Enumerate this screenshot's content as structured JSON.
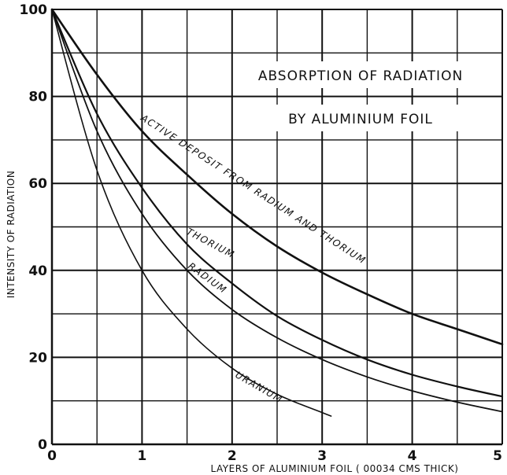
{
  "chart_data": {
    "type": "line",
    "title": "ABSORPTION OF RADIATION",
    "subtitle": "BY ALUMINIUM FOIL",
    "xlabel": "LAYERS OF ALUMINIUM FOIL ( 00034 CMS THICK)",
    "ylabel": "INTENSITY OF RADIATION",
    "xlim": [
      0,
      5
    ],
    "ylim": [
      0,
      100
    ],
    "x_ticks": [
      "0",
      "1",
      "2",
      "3",
      "4",
      "5"
    ],
    "y_ticks": [
      "0",
      "20",
      "40",
      "60",
      "80",
      "100"
    ],
    "grid": true,
    "series": [
      {
        "name": "ACTIVE DEPOSIT FROM RADIUM AND THORIUM",
        "x": [
          0,
          0.5,
          1,
          1.5,
          2,
          2.5,
          3,
          3.5,
          4,
          4.5,
          5
        ],
        "y": [
          100,
          85,
          72,
          62,
          53,
          45.5,
          39.5,
          34.5,
          30,
          26.5,
          23
        ]
      },
      {
        "name": "THORIUM",
        "x": [
          0,
          0.5,
          1,
          1.5,
          2,
          2.5,
          3,
          3.5,
          4,
          4.5,
          5
        ],
        "y": [
          100,
          76,
          59,
          46,
          37,
          29.5,
          24,
          19.5,
          16,
          13.3,
          11
        ]
      },
      {
        "name": "RADIUM",
        "x": [
          0,
          0.5,
          1,
          1.5,
          2,
          2.5,
          3,
          3.5,
          4,
          4.5,
          5
        ],
        "y": [
          100,
          72,
          53,
          40,
          31,
          24.5,
          19.5,
          15.5,
          12.3,
          9.7,
          7.5
        ]
      },
      {
        "name": "URANIUM",
        "x": [
          0,
          0.5,
          1,
          1.5,
          2,
          2.5,
          3,
          3.1
        ],
        "y": [
          100,
          63,
          40,
          26.5,
          17.5,
          11.5,
          7.3,
          6.5
        ]
      }
    ]
  }
}
